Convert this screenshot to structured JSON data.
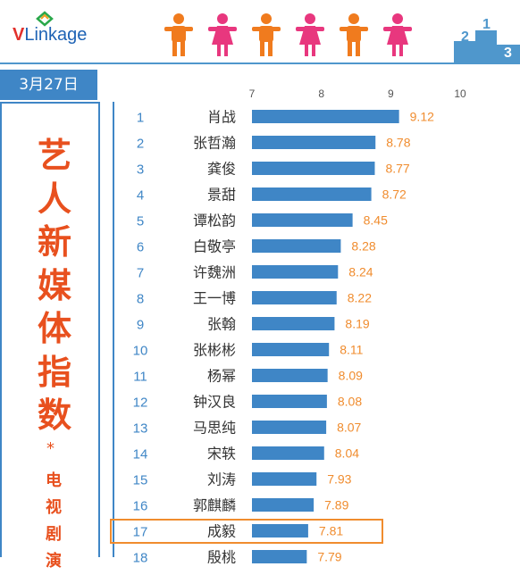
{
  "brand": {
    "logo_v": "V",
    "logo_rest": "Linkage"
  },
  "header": {
    "figures": [
      "male",
      "female",
      "male",
      "female",
      "male",
      "female"
    ],
    "figure_colors": {
      "male": "#f07b1e",
      "female": "#e8377e"
    },
    "podium_numbers": [
      "2",
      "1",
      "3"
    ],
    "podium_color": "#4f97cc"
  },
  "sidebar": {
    "date": "3月27日",
    "title_chars": [
      "艺",
      "人",
      "新",
      "媒",
      "体",
      "指",
      "数"
    ],
    "star": "*",
    "subtitle_chars": [
      "电",
      "视",
      "剧",
      "演"
    ]
  },
  "colors": {
    "bar": "#3f86c6",
    "rank": "#3f86c6",
    "value": "#f08c2e",
    "title": "#e8501e",
    "highlight": "#f08c2e"
  },
  "chart_data": {
    "type": "bar",
    "orientation": "horizontal",
    "xlim": [
      7,
      10
    ],
    "x_ticks": [
      "7",
      "8",
      "9",
      "10"
    ],
    "grid": false,
    "highlight_rank": "17",
    "ranks": [
      "1",
      "2",
      "3",
      "4",
      "5",
      "6",
      "7",
      "8",
      "9",
      "10",
      "11",
      "12",
      "13",
      "14",
      "15",
      "16",
      "17",
      "18"
    ],
    "categories": [
      "肖战",
      "张哲瀚",
      "龚俊",
      "景甜",
      "谭松韵",
      "白敬亭",
      "许魏洲",
      "王一博",
      "张翰",
      "张彬彬",
      "杨幂",
      "钟汉良",
      "马思纯",
      "宋轶",
      "刘涛",
      "郭麒麟",
      "成毅",
      "殷桃"
    ],
    "values": [
      9.12,
      8.78,
      8.77,
      8.72,
      8.45,
      8.28,
      8.24,
      8.22,
      8.19,
      8.11,
      8.09,
      8.08,
      8.07,
      8.04,
      7.93,
      7.89,
      7.81,
      7.79
    ],
    "value_labels": [
      "9.12",
      "8.78",
      "8.77",
      "8.72",
      "8.45",
      "8.28",
      "8.24",
      "8.22",
      "8.19",
      "8.11",
      "8.09",
      "8.08",
      "8.07",
      "8.04",
      "7.93",
      "7.89",
      "7.81",
      "7.79"
    ]
  }
}
